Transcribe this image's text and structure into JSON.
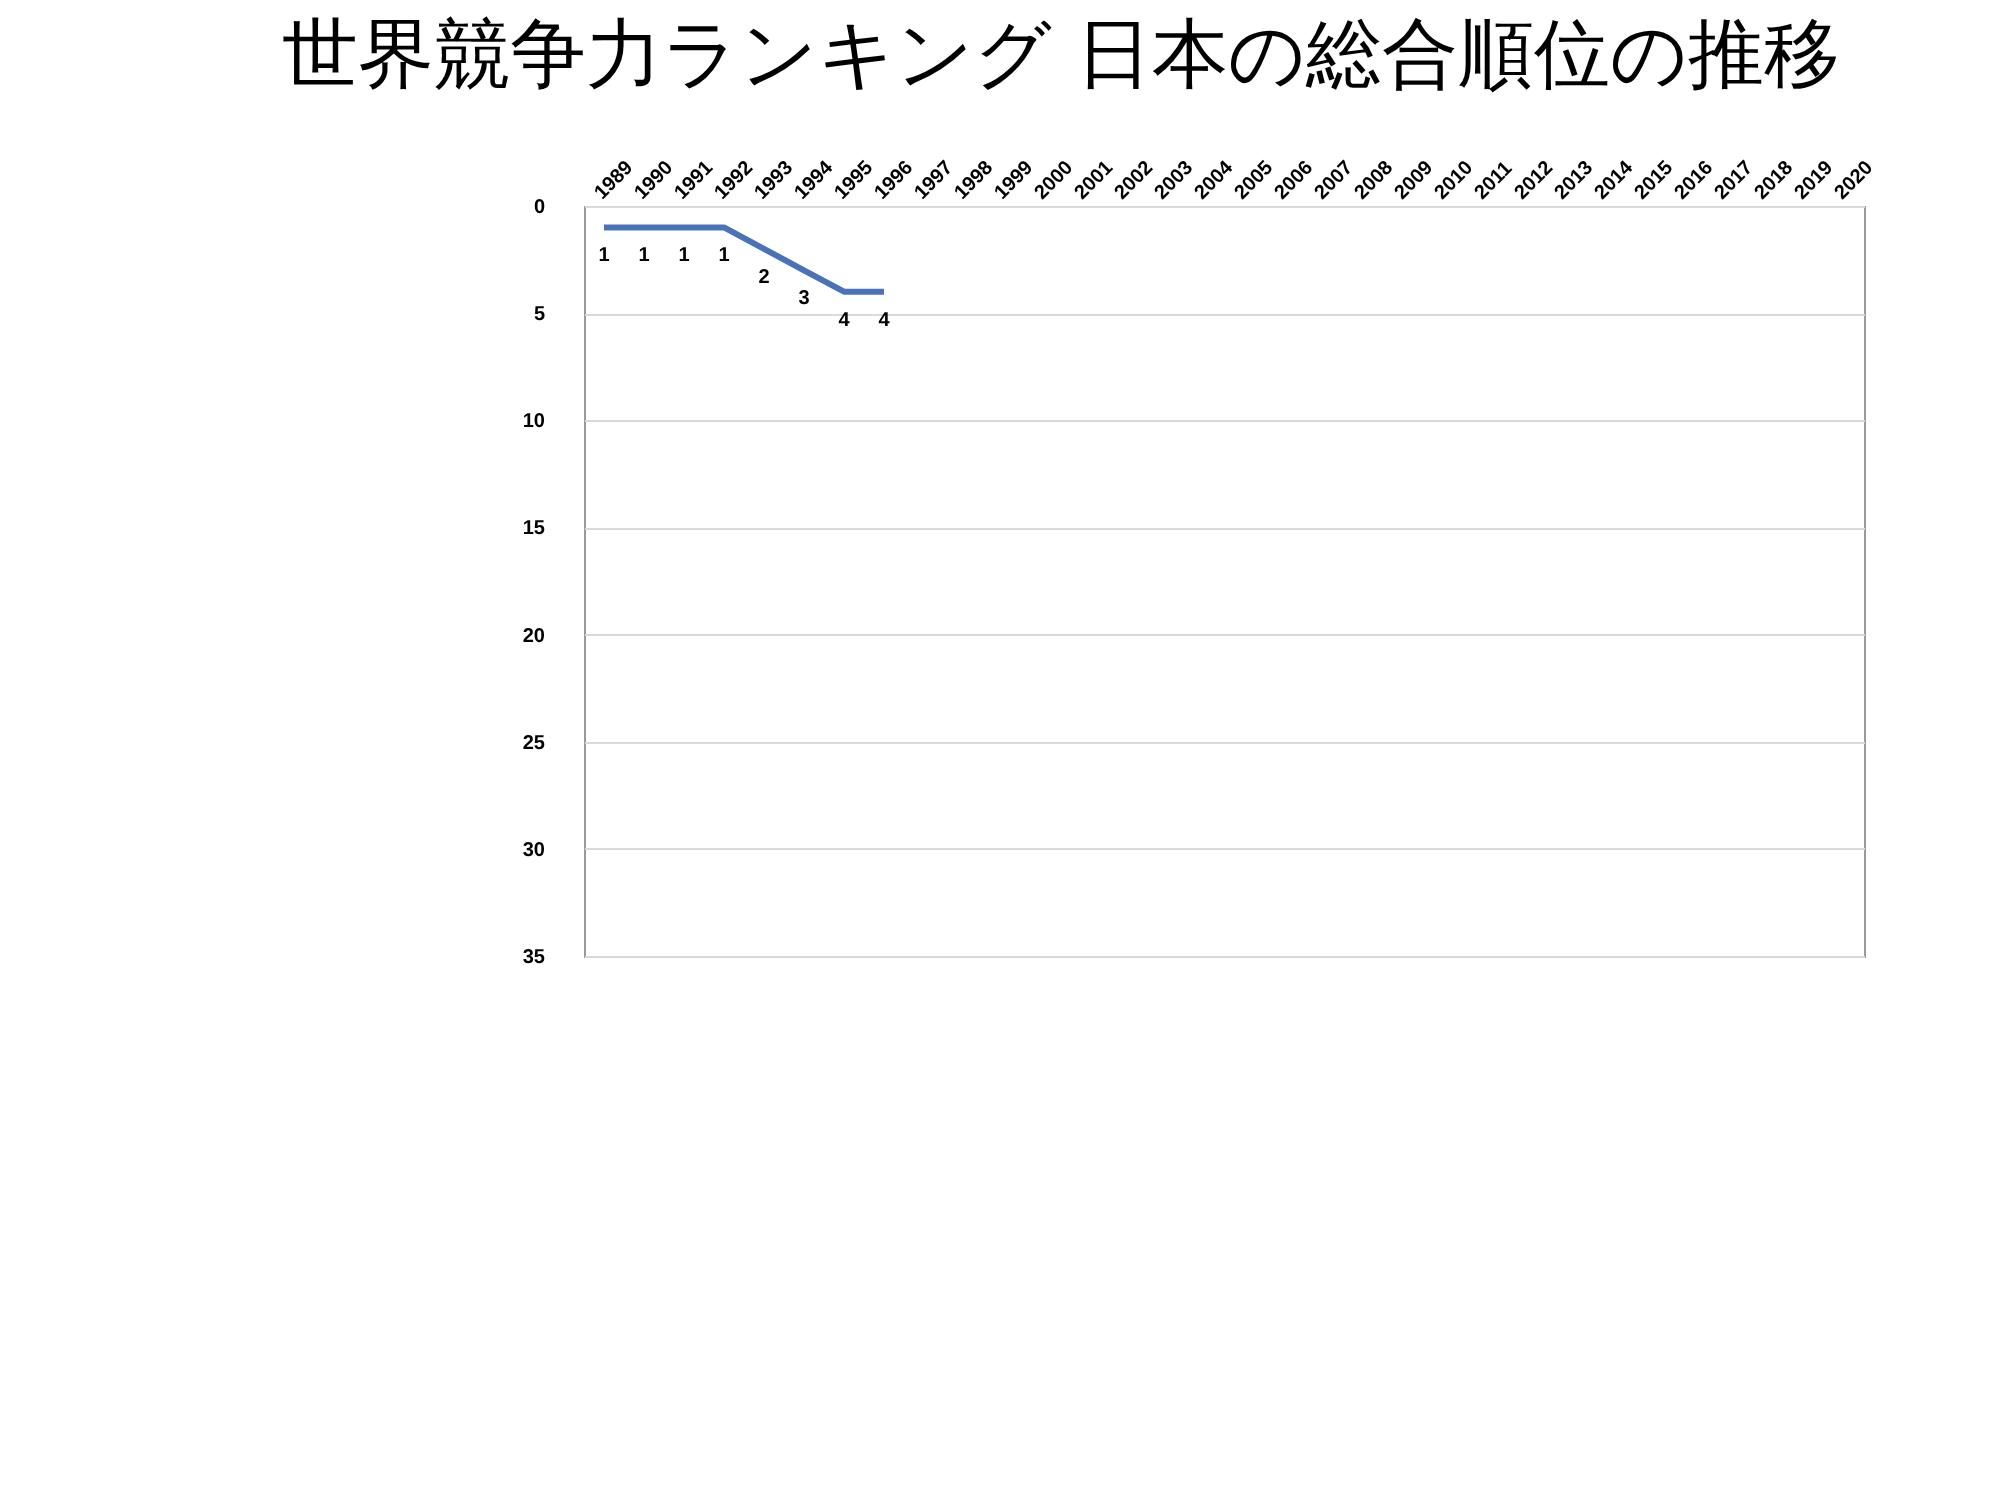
{
  "chart_data": {
    "type": "line",
    "title": "世界競争力ランキング 日本の総合順位の推移",
    "categories": [
      "1989",
      "1990",
      "1991",
      "1992",
      "1993",
      "1994",
      "1995",
      "1996",
      "1997",
      "1998",
      "1999",
      "2000",
      "2001",
      "2002",
      "2003",
      "2004",
      "2005",
      "2006",
      "2007",
      "2008",
      "2009",
      "2010",
      "2011",
      "2012",
      "2013",
      "2014",
      "2015",
      "2016",
      "2017",
      "2018",
      "2019",
      "2020"
    ],
    "series": [
      {
        "color": "#4a72b8",
        "values": [
          1,
          1,
          1,
          1,
          2,
          3,
          4,
          4,
          null,
          null,
          null,
          null,
          null,
          null,
          null,
          null,
          null,
          null,
          null,
          null,
          null,
          null,
          null,
          null,
          null,
          null,
          null,
          null,
          null,
          null,
          null,
          null
        ]
      }
    ],
    "ylim": [
      35,
      0
    ],
    "yticks": [
      0,
      5,
      10,
      15,
      20,
      25,
      30,
      35
    ],
    "grid": "y",
    "data_labels": true
  }
}
